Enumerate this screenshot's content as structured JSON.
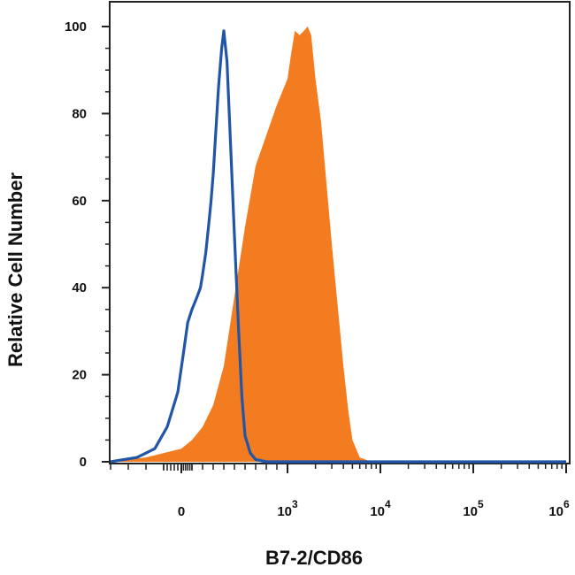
{
  "chart_data": {
    "type": "area",
    "title": "",
    "xlabel": "B7-2/CD86",
    "ylabel": "Relative Cell Number",
    "ylim": [
      0,
      100
    ],
    "y_ticks": [
      "0",
      "20",
      "40",
      "60",
      "80",
      "100"
    ],
    "x_ticks": [
      {
        "base": "0",
        "exp": ""
      },
      {
        "base": "10",
        "exp": "3"
      },
      {
        "base": "10",
        "exp": "4"
      },
      {
        "base": "10",
        "exp": "5"
      },
      {
        "base": "10",
        "exp": "6"
      }
    ],
    "x_scale": "biexponential",
    "grid": false,
    "legend": "none",
    "series": [
      {
        "style": "line",
        "color": "#2155a8",
        "x": [
          -400,
          -250,
          -150,
          -80,
          -20,
          20,
          60,
          100,
          150,
          180,
          200,
          230,
          260,
          280,
          300,
          320,
          350,
          380,
          400,
          430,
          460,
          500,
          540,
          570,
          600,
          650,
          700,
          800,
          1000,
          10000,
          1000000
        ],
        "y": [
          0,
          1,
          3,
          8,
          16,
          25,
          32,
          35,
          38,
          40,
          43,
          48,
          55,
          60,
          66,
          74,
          86,
          95,
          99,
          92,
          75,
          52,
          30,
          15,
          6,
          2,
          0.5,
          0,
          0,
          0,
          0
        ]
      },
      {
        "style": "filled",
        "color": "#f47c20",
        "x": [
          -400,
          -200,
          0,
          100,
          200,
          300,
          400,
          500,
          600,
          700,
          800,
          900,
          1000,
          1100,
          1200,
          1350,
          1500,
          1650,
          1800,
          2000,
          2300,
          2600,
          3000,
          3500,
          4000,
          4500,
          5000,
          6000,
          8000,
          10000,
          1000000
        ],
        "y": [
          0,
          1,
          3,
          5,
          8,
          13,
          22,
          38,
          54,
          68,
          75,
          82,
          88,
          94,
          99,
          98,
          99,
          100,
          98,
          88,
          78,
          65,
          50,
          35,
          22,
          12,
          5,
          1,
          0,
          0,
          0
        ]
      }
    ]
  }
}
